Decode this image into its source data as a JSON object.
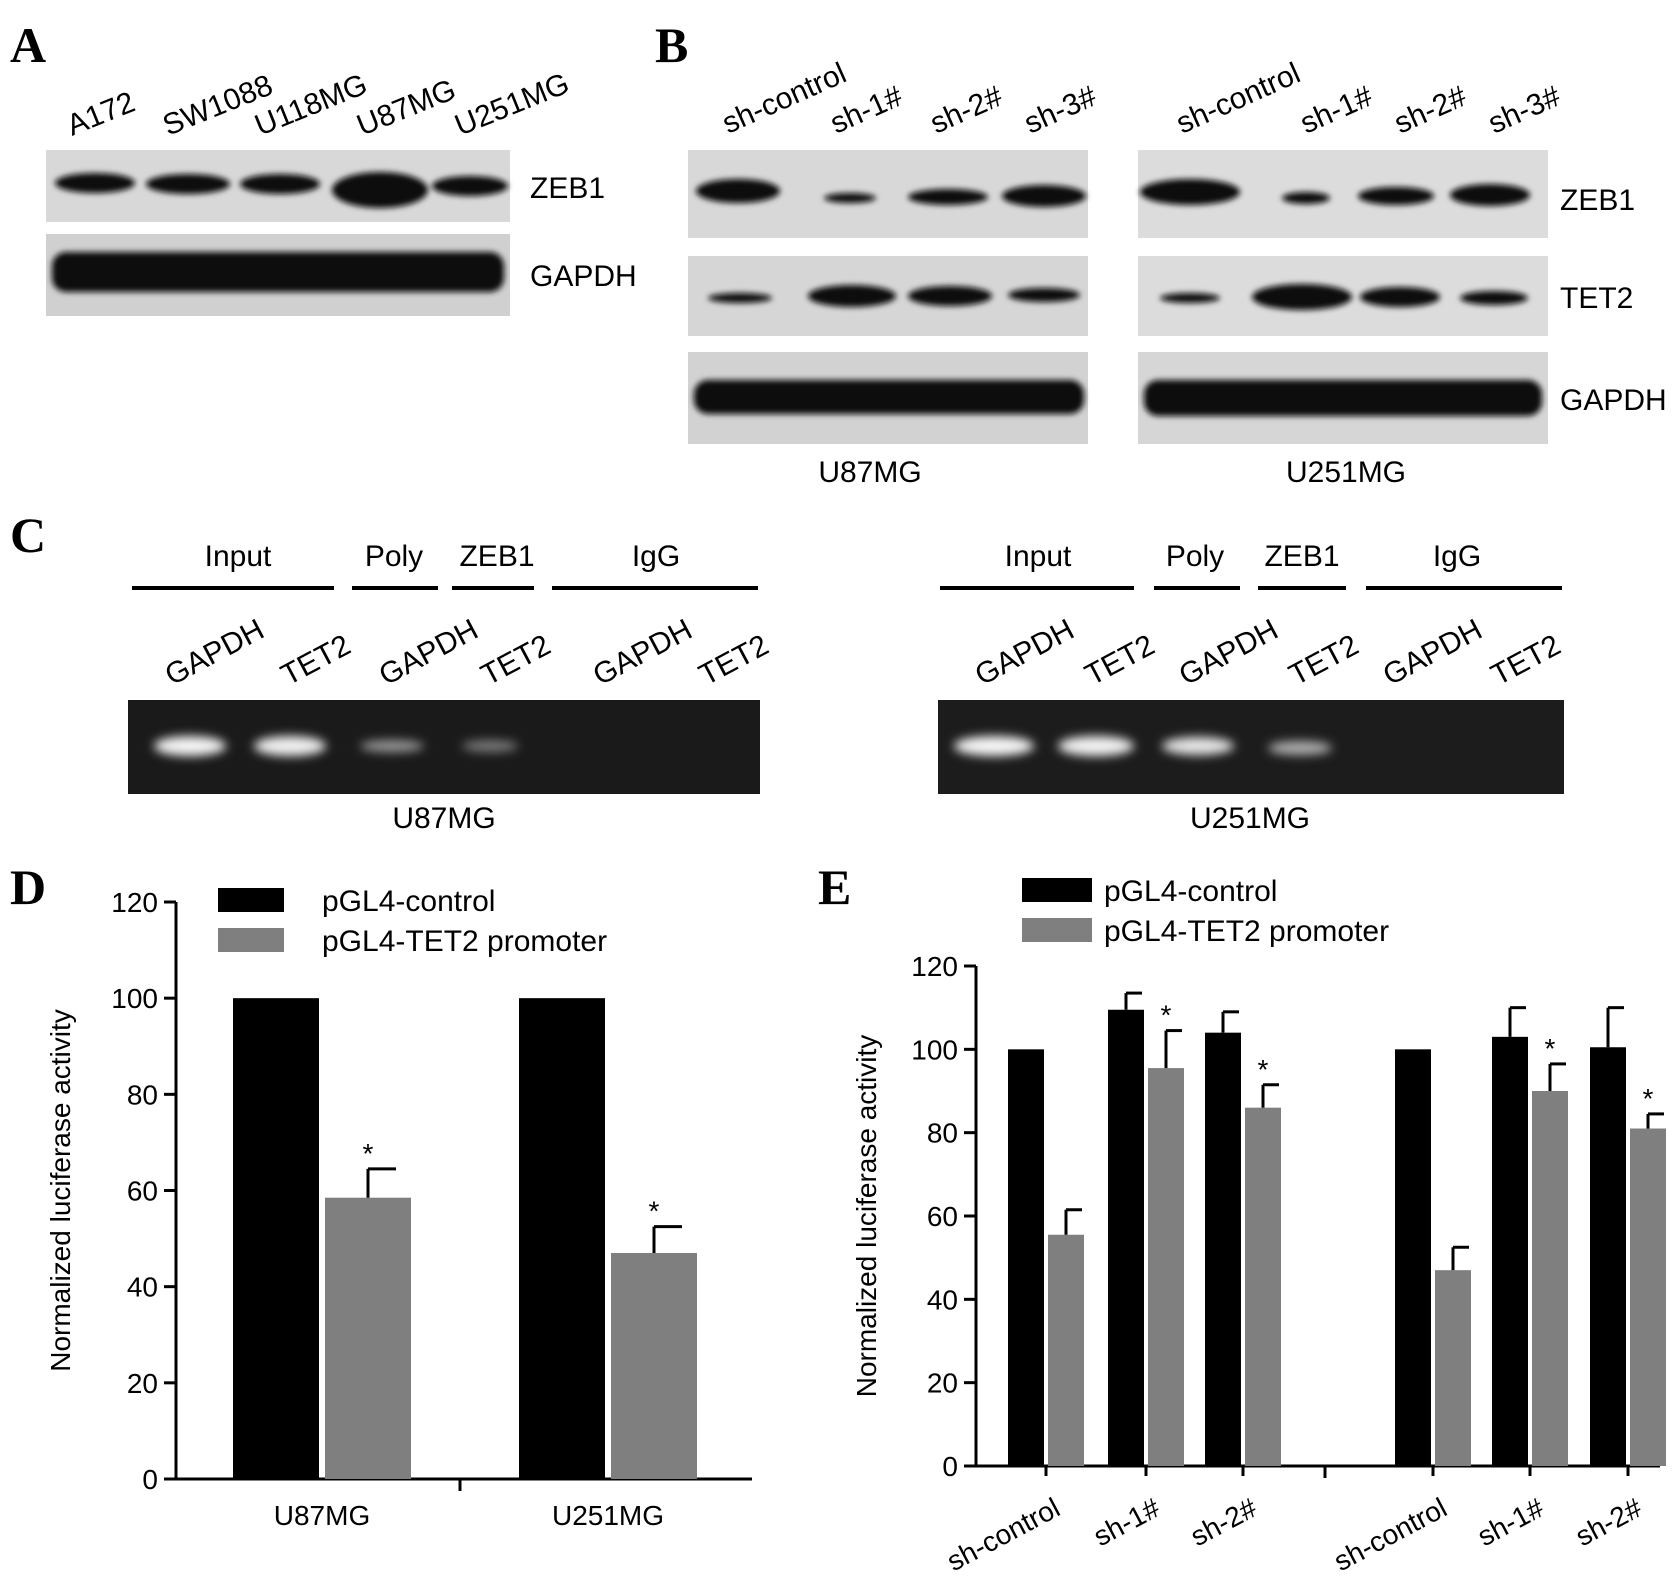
{
  "panel_labels": [
    "A",
    "B",
    "C",
    "D",
    "E"
  ],
  "panel_a": {
    "lanes": [
      "A172",
      "SW1088",
      "U118MG",
      "U87MG",
      "U251MG"
    ],
    "bands": [
      "ZEB1",
      "GAPDH"
    ]
  },
  "panel_b": {
    "lanes": [
      "sh-control",
      "sh-1#",
      "sh-2#",
      "sh-3#"
    ],
    "bands": [
      "ZEB1",
      "TET2",
      "GAPDH"
    ],
    "cell_lines": [
      "U87MG",
      "U251MG"
    ]
  },
  "panel_c": {
    "groups": [
      "Input",
      "Poly",
      "ZEB1",
      "IgG"
    ],
    "lanes": [
      "GAPDH",
      "TET2",
      "GAPDH",
      "TET2",
      "GAPDH",
      "TET2"
    ],
    "cell_lines": [
      "U87MG",
      "U251MG"
    ]
  },
  "chart_data": [
    {
      "type": "bar",
      "panel": "D",
      "categories": [
        "U87MG",
        "U251MG"
      ],
      "series": [
        {
          "name": "pGL4-control",
          "color": "#000000",
          "values": [
            100,
            100
          ],
          "errors": [
            0,
            0
          ]
        },
        {
          "name": "pGL4-TET2 promoter",
          "color": "#7f7f7f",
          "values": [
            58.5,
            47
          ],
          "errors": [
            6,
            5.5
          ]
        }
      ],
      "significance": [
        "*",
        "*"
      ],
      "ylabel": "Normalized luciferase activity",
      "yticks": [
        "0",
        "20",
        "40",
        "60",
        "80",
        "100",
        "120"
      ],
      "ylim": [
        0,
        120
      ]
    },
    {
      "type": "bar",
      "panel": "E",
      "categories": [
        "sh-control",
        "sh-1#",
        "sh-2#",
        "sh-control",
        "sh-1#",
        "sh-2#"
      ],
      "series": [
        {
          "name": "pGL4-control",
          "color": "#000000",
          "values": [
            100,
            109.5,
            104,
            100,
            103,
            100.5
          ],
          "errors": [
            0,
            4,
            5,
            0,
            7,
            9.5
          ]
        },
        {
          "name": "pGL4-TET2 promoter",
          "color": "#7f7f7f",
          "values": [
            55.5,
            95.5,
            86,
            47,
            90,
            81
          ],
          "errors": [
            6,
            9,
            5.5,
            5.5,
            6.5,
            3.5
          ]
        }
      ],
      "significance": [
        "",
        "*",
        "*",
        "",
        "*",
        "*"
      ],
      "ylabel": "Normalized luciferase activity",
      "yticks": [
        "0",
        "20",
        "40",
        "60",
        "80",
        "100",
        "120"
      ],
      "ylim": [
        0,
        120
      ]
    }
  ]
}
